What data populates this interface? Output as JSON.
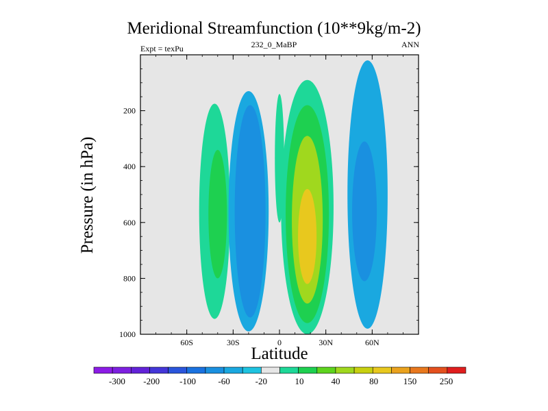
{
  "chart_data": {
    "type": "contour",
    "title": "Meridional Streamfunction (10**9kg/m-2)",
    "subtitle_left": "Expt = texPu",
    "subtitle_center": "232_0_MaBP",
    "subtitle_right": "ANN",
    "xlabel": "Latitude",
    "ylabel": "Pressure (in hPa)",
    "xlim": [
      -90,
      90
    ],
    "ylim": [
      1000,
      0
    ],
    "xticks": [
      {
        "v": -60,
        "label": "60S"
      },
      {
        "v": -30,
        "label": "30S"
      },
      {
        "v": 0,
        "label": "0"
      },
      {
        "v": 30,
        "label": "30N"
      },
      {
        "v": 60,
        "label": "60N"
      }
    ],
    "yticks": [
      {
        "v": 200,
        "label": "200"
      },
      {
        "v": 400,
        "label": "400"
      },
      {
        "v": 600,
        "label": "600"
      },
      {
        "v": 800,
        "label": "800"
      },
      {
        "v": 1000,
        "label": "1000"
      }
    ],
    "colorbar": {
      "colors": [
        "#8c1ce6",
        "#7d20e0",
        "#6222d8",
        "#4436d8",
        "#2a55dc",
        "#1a72e0",
        "#1a90e0",
        "#1aa8e0",
        "#1ec3e0",
        "#e6e6e6",
        "#1ed898",
        "#1ed050",
        "#5ed41e",
        "#a0d81e",
        "#c8d010",
        "#e8c81e",
        "#eaa21e",
        "#e8781e",
        "#e4501e",
        "#e01e1e"
      ],
      "labels": [
        "-300",
        "-200",
        "-100",
        "-60",
        "-20",
        "10",
        "40",
        "80",
        "150",
        "250"
      ]
    },
    "cells": [
      {
        "lat": -42,
        "p": 560,
        "wlat": 10,
        "wp": 385,
        "value": 10
      },
      {
        "lat": -40,
        "p": 570,
        "wlat": 6,
        "wp": 230,
        "value": 40
      },
      {
        "lat": -20,
        "p": 560,
        "wlat": 13,
        "wp": 430,
        "value": -20
      },
      {
        "lat": -19,
        "p": 560,
        "wlat": 10,
        "wp": 380,
        "value": -60
      },
      {
        "lat": 0,
        "p": 370,
        "wlat": 3,
        "wp": 230,
        "value": 10
      },
      {
        "lat": 18,
        "p": 545,
        "wlat": 17,
        "wp": 455,
        "value": 10
      },
      {
        "lat": 18,
        "p": 570,
        "wlat": 14,
        "wp": 390,
        "value": 40
      },
      {
        "lat": 18,
        "p": 590,
        "wlat": 10,
        "wp": 300,
        "value": 80
      },
      {
        "lat": 18,
        "p": 650,
        "wlat": 6,
        "wp": 170,
        "value": 150
      },
      {
        "lat": 57,
        "p": 500,
        "wlat": 13,
        "wp": 480,
        "value": -20
      },
      {
        "lat": 55,
        "p": 560,
        "wlat": 8,
        "wp": 250,
        "value": -60
      }
    ]
  }
}
